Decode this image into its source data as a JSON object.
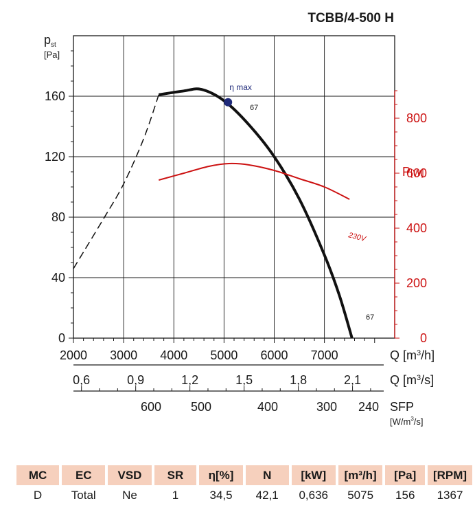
{
  "chart_data": {
    "type": "line",
    "title": "TCBB/4-500 H",
    "y_label_main": "p",
    "y_label_sub": "st",
    "y_unit": "[Pa]",
    "y_ticks": [
      0,
      40,
      80,
      120,
      160
    ],
    "ylim": [
      0,
      200
    ],
    "x_ticks": [
      2000,
      3000,
      4000,
      5000,
      6000,
      7000
    ],
    "xlim": [
      2000,
      8400
    ],
    "x_label_main": "Q [m",
    "x_label_sup": "3",
    "x_label_end": "/h]",
    "x2_ticks": [
      "0,6",
      "0,9",
      "1,2",
      "1,5",
      "1,8",
      "2,1"
    ],
    "x2_label_main": "Q [m",
    "x2_label_sup": "3",
    "x2_label_end": "/s]",
    "sfp_ticks": [
      "600",
      "500",
      "400",
      "300",
      "240"
    ],
    "sfp_label": "SFP",
    "sfp_unit_main": "[W/m",
    "sfp_unit_sup": "3",
    "sfp_unit_end": "/s]",
    "y2_label_main": "P",
    "y2_label_unit": "[W]",
    "y2_ticks": [
      0,
      200,
      400,
      600,
      800
    ],
    "y2lim": [
      0,
      1100
    ],
    "y2_color": "#cc1111",
    "series": [
      {
        "name": "",
        "axis": "left",
        "color": "#111111",
        "solid_x": [
          3700,
          4200,
          4550,
          5000,
          5500,
          6000,
          6500,
          7000,
          7300,
          7550
        ],
        "solid_y": [
          161,
          163.5,
          164.5,
          157,
          141,
          120,
          92,
          55,
          28,
          0
        ],
        "dashed_x": [
          2000,
          2600,
          3000,
          3400,
          3700
        ],
        "dashed_y": [
          46,
          79,
          102,
          132,
          161
        ]
      },
      {
        "name": "230V",
        "axis": "right",
        "color": "#cc1111",
        "x": [
          3700,
          4200,
          4700,
          5100,
          5500,
          6000,
          6500,
          7000,
          7500
        ],
        "y": [
          575,
          600,
          625,
          635,
          630,
          610,
          580,
          550,
          505
        ]
      }
    ],
    "points": [
      {
        "x": 5080,
        "y": 156,
        "label": "η max",
        "color": "#1f2a7a"
      }
    ],
    "annotations": [
      "67",
      "67"
    ],
    "grid": true
  },
  "table": {
    "headers": [
      "MC",
      "EC",
      "VSD",
      "SR",
      "η[%]",
      "N",
      "[kW]",
      "[m³/h]",
      "[Pa]",
      "[RPM]"
    ],
    "values": [
      "D",
      "Total",
      "Ne",
      "1",
      "34,5",
      "42,1",
      "0,636",
      "5075",
      "156",
      "1367"
    ],
    "header_bg": "#f6d0bd"
  }
}
